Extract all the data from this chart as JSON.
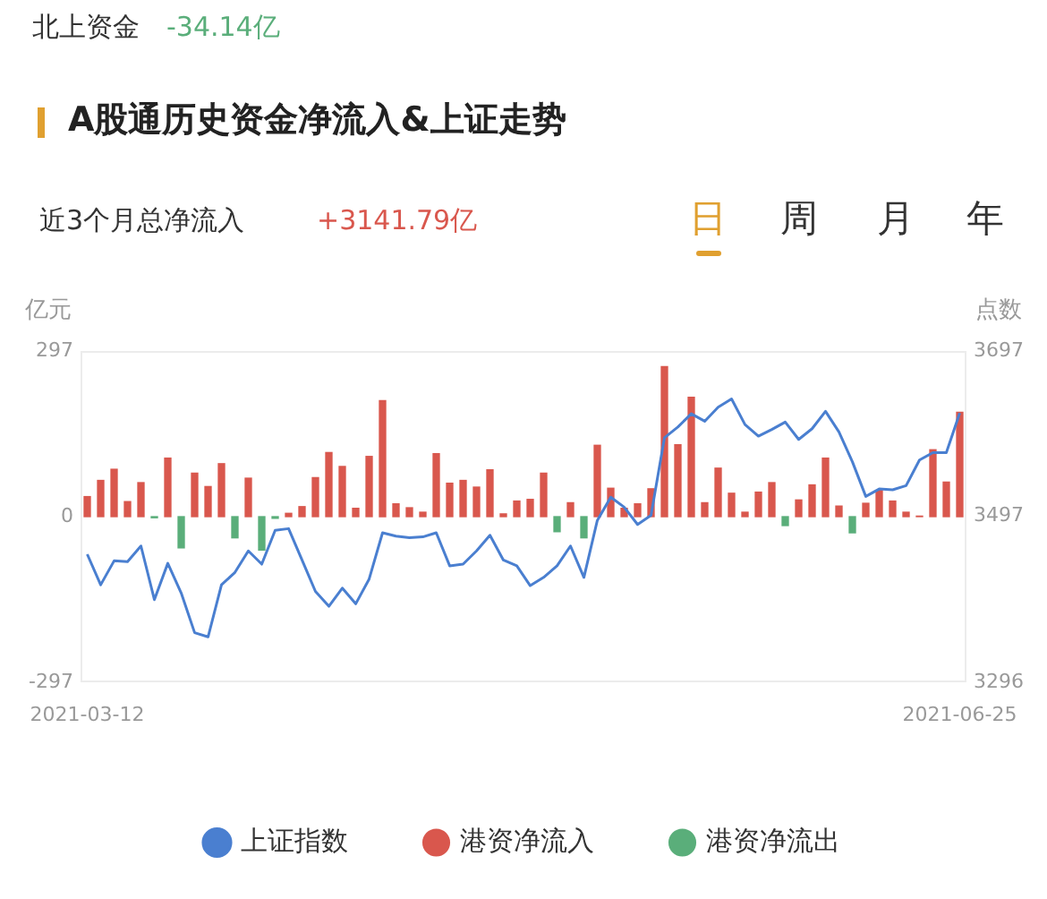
{
  "chart_data": {
    "type": "bar",
    "title": "A股通历史资金净流入&上证走势",
    "annotations": [
      "北上资金",
      "-34.14亿",
      "近3个月总净流入",
      "+3141.79亿",
      "日",
      "周",
      "月",
      "年"
    ],
    "ylabel": "亿元",
    "y2label": "点数",
    "categories": [
      "2021-03-12",
      null,
      null,
      null,
      null,
      null,
      null,
      null,
      null,
      null,
      null,
      null,
      null,
      null,
      null,
      null,
      null,
      null,
      null,
      null,
      null,
      null,
      null,
      null,
      null,
      null,
      null,
      null,
      null,
      null,
      null,
      null,
      null,
      null,
      null,
      null,
      null,
      null,
      null,
      null,
      null,
      null,
      null,
      null,
      null,
      null,
      null,
      null,
      null,
      null,
      null,
      null,
      null,
      null,
      null,
      null,
      null,
      null,
      null,
      null,
      null,
      null,
      null,
      null,
      null,
      "2021-06-25"
    ],
    "series": [
      {
        "name": "港资净流入",
        "color": "#d9574d",
        "values": [
          36,
          65,
          85,
          27,
          61,
          null,
          105,
          null,
          78,
          54,
          95,
          null,
          69,
          null,
          null,
          6,
          18,
          70,
          115,
          90,
          15,
          108,
          208,
          23,
          16,
          8,
          113,
          60,
          65,
          53,
          84,
          5,
          28,
          31,
          78,
          null,
          25,
          null,
          128,
          51,
          15,
          23,
          50,
          269,
          129,
          214,
          25,
          87,
          42,
          8,
          44,
          61,
          null,
          30,
          57,
          105,
          19,
          null,
          24,
          47,
          28,
          8,
          1,
          120,
          62,
          187
        ]
      },
      {
        "name": "港资净流出",
        "color": "#5aae7a",
        "values": [
          null,
          null,
          null,
          null,
          null,
          -2,
          null,
          -56,
          null,
          null,
          null,
          -38,
          null,
          -60,
          -3,
          null,
          null,
          null,
          null,
          null,
          null,
          null,
          null,
          null,
          null,
          null,
          null,
          null,
          null,
          null,
          null,
          null,
          null,
          null,
          null,
          -27,
          null,
          -38,
          null,
          null,
          null,
          null,
          null,
          null,
          null,
          null,
          null,
          null,
          null,
          null,
          null,
          null,
          -16,
          null,
          null,
          null,
          null,
          -29,
          null,
          null,
          null,
          null,
          null,
          null,
          null,
          null
        ]
      },
      {
        "name": "上证指数",
        "type": "line",
        "axis": "y2",
        "color": "#4a7fd0",
        "values": [
          3451,
          3414,
          3443,
          3442,
          3461,
          3396,
          3440,
          3404,
          3356,
          3351,
          3414,
          3429,
          3455,
          3439,
          3480,
          3482,
          3444,
          3406,
          3388,
          3410,
          3391,
          3421,
          3477,
          3473,
          3471,
          3472,
          3477,
          3437,
          3439,
          3455,
          3474,
          3444,
          3437,
          3413,
          3423,
          3437,
          3461,
          3423,
          3492,
          3520,
          3508,
          3487,
          3498,
          3592,
          3605,
          3621,
          3612,
          3629,
          3639,
          3608,
          3594,
          3602,
          3611,
          3590,
          3603,
          3624,
          3599,
          3563,
          3521,
          3530,
          3529,
          3534,
          3565,
          3574,
          3574,
          3622
        ]
      }
    ],
    "ylim": [
      -297,
      297
    ],
    "yticks": [
      -297,
      0,
      297
    ],
    "y2lim": [
      3296,
      3697
    ],
    "y2ticks": [
      3296,
      3497,
      3697
    ],
    "grid": false,
    "legend": "bottom",
    "marker": "none",
    "line_style": "solid"
  }
}
